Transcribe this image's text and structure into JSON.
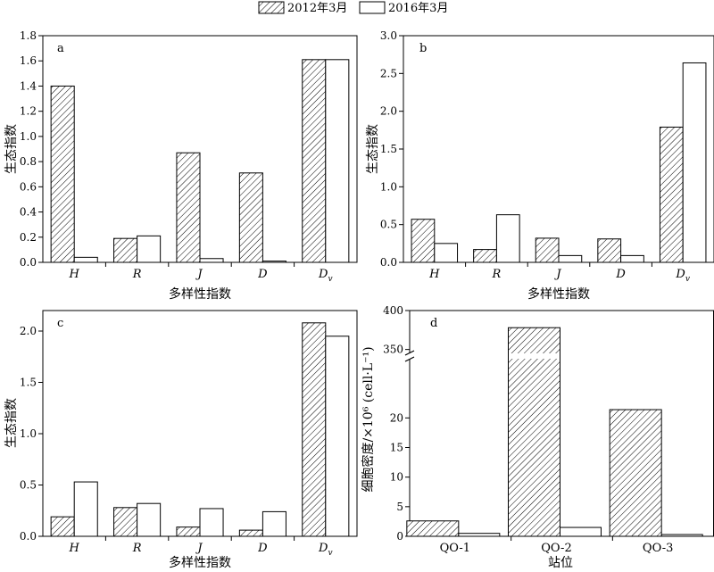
{
  "legend": {
    "series1": "2012年3月",
    "series2": "2016年3月"
  },
  "chart_data": [
    {
      "panel": "a",
      "type": "bar",
      "categories": [
        "H",
        "R",
        "J",
        "D",
        "Dv"
      ],
      "category_labels": [
        {
          "main": "H",
          "sub": ""
        },
        {
          "main": "R",
          "sub": ""
        },
        {
          "main": "J",
          "sub": ""
        },
        {
          "main": "D",
          "sub": ""
        },
        {
          "main": "D",
          "sub": "v"
        }
      ],
      "series": [
        {
          "name": "2012年3月",
          "values": [
            1.4,
            0.19,
            0.87,
            0.71,
            1.61
          ]
        },
        {
          "name": "2016年3月",
          "values": [
            0.04,
            0.21,
            0.03,
            0.01,
            1.61
          ]
        }
      ],
      "ylabel": "生态指数",
      "xlabel": "多样性指数",
      "ylim": [
        0,
        1.8
      ],
      "yticks": [
        0.0,
        0.2,
        0.4,
        0.6,
        0.8,
        1.0,
        1.2,
        1.4,
        1.6,
        1.8
      ],
      "ytick_labels": [
        "0.0",
        "0.2",
        "0.4",
        "0.6",
        "0.8",
        "1.0",
        "1.2",
        "1.4",
        "1.6",
        "1.8"
      ]
    },
    {
      "panel": "b",
      "type": "bar",
      "categories": [
        "H",
        "R",
        "J",
        "D",
        "Dv"
      ],
      "category_labels": [
        {
          "main": "H",
          "sub": ""
        },
        {
          "main": "R",
          "sub": ""
        },
        {
          "main": "J",
          "sub": ""
        },
        {
          "main": "D",
          "sub": ""
        },
        {
          "main": "D",
          "sub": "v"
        }
      ],
      "series": [
        {
          "name": "2012年3月",
          "values": [
            0.57,
            0.17,
            0.32,
            0.31,
            1.79
          ]
        },
        {
          "name": "2016年3月",
          "values": [
            0.25,
            0.63,
            0.09,
            0.09,
            2.64
          ]
        }
      ],
      "ylabel": "生态指数",
      "xlabel": "多样性指数",
      "ylim": [
        0,
        3.0
      ],
      "yticks": [
        0.0,
        0.5,
        1.0,
        1.5,
        2.0,
        2.5,
        3.0
      ],
      "ytick_labels": [
        "0.0",
        "0.5",
        "1.0",
        "1.5",
        "2.0",
        "2.5",
        "3.0"
      ]
    },
    {
      "panel": "c",
      "type": "bar",
      "categories": [
        "H",
        "R",
        "J",
        "D",
        "Dv"
      ],
      "category_labels": [
        {
          "main": "H",
          "sub": ""
        },
        {
          "main": "R",
          "sub": ""
        },
        {
          "main": "J",
          "sub": ""
        },
        {
          "main": "D",
          "sub": ""
        },
        {
          "main": "D",
          "sub": "v"
        }
      ],
      "series": [
        {
          "name": "2012年3月",
          "values": [
            0.19,
            0.28,
            0.09,
            0.06,
            2.08
          ]
        },
        {
          "name": "2016年3月",
          "values": [
            0.53,
            0.32,
            0.27,
            0.24,
            1.95
          ]
        }
      ],
      "ylabel": "生态指数",
      "xlabel": "多样性指数",
      "ylim": [
        0,
        2.2
      ],
      "yticks": [
        0.0,
        0.5,
        1.0,
        1.5,
        2.0
      ],
      "ytick_labels": [
        "0.0",
        "0.5",
        "1.0",
        "1.5",
        "2.0"
      ]
    },
    {
      "panel": "d",
      "type": "bar",
      "broken_axis": true,
      "categories": [
        "QO-1",
        "QO-2",
        "QO-3"
      ],
      "series": [
        {
          "name": "2012年3月",
          "values": [
            2.6,
            378,
            21.4
          ]
        },
        {
          "name": "2016年3月",
          "values": [
            0.5,
            1.5,
            0.3
          ]
        }
      ],
      "ylabel": "细胞密度/×10⁶ (cell·L⁻¹)",
      "xlabel": "站位",
      "ylim_lower": [
        0,
        30
      ],
      "ylim_upper": [
        345,
        400
      ],
      "yticks_lower": [
        0,
        5,
        10,
        15,
        20
      ],
      "ytick_labels_lower": [
        "0",
        "5",
        "10",
        "15",
        "20"
      ],
      "yticks_upper": [
        350,
        400
      ],
      "ytick_labels_upper": [
        "350",
        "400"
      ]
    }
  ]
}
